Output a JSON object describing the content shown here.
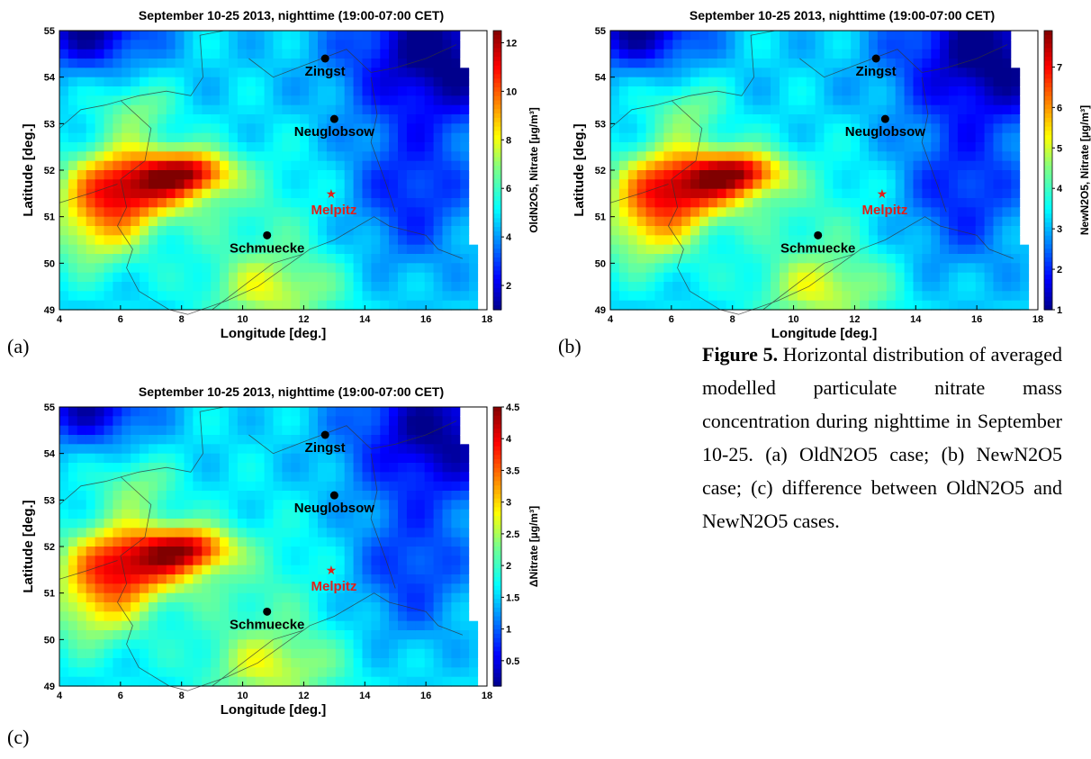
{
  "figure": {
    "label": "Figure 5.",
    "caption": "Horizontal distribution of averaged modelled particulate nitrate mass concentration during nighttime in September 10-25. (a) OldN2O5 case; (b) NewN2O5 case; (c) difference between OldN2O5 and NewN2O5 cases."
  },
  "chart_data": [
    {
      "panel": "(a)",
      "type": "heatmap",
      "title": "September 10-25 2013, nighttime (19:00-07:00 CET)",
      "xlabel": "Longitude [deg.]",
      "ylabel": "Latitude [deg.]",
      "colorbar_label": "OldN2O5, Nitrate [µg/m³]",
      "xlim": [
        4,
        18
      ],
      "ylim": [
        49,
        55
      ],
      "x_ticks": [
        "4",
        "6",
        "8",
        "10",
        "12",
        "14",
        "16",
        "18"
      ],
      "y_ticks": [
        "49",
        "50",
        "51",
        "52",
        "53",
        "54",
        "55"
      ],
      "colorbar_range": [
        1,
        12.5
      ],
      "colorbar_ticks": [
        "2",
        "4",
        "6",
        "8",
        "10",
        "12"
      ],
      "stations": [
        {
          "name": "Zingst",
          "lon": 12.7,
          "lat": 54.4,
          "marker": "dot"
        },
        {
          "name": "Neuglobsow",
          "lon": 13.0,
          "lat": 53.1,
          "marker": "dot"
        },
        {
          "name": "Melpitz",
          "lon": 12.9,
          "lat": 51.5,
          "marker": "star"
        },
        {
          "name": "Schmuecke",
          "lon": 10.8,
          "lat": 50.6,
          "marker": "dot"
        }
      ]
    },
    {
      "panel": "(b)",
      "type": "heatmap",
      "title": "September 10-25 2013, nighttime (19:00-07:00 CET)",
      "xlabel": "Longitude [deg.]",
      "ylabel": "Latitude [deg.]",
      "colorbar_label": "NewN2O5, Nitrate [µg/m³]",
      "xlim": [
        4,
        18
      ],
      "ylim": [
        49,
        55
      ],
      "x_ticks": [
        "4",
        "6",
        "8",
        "10",
        "12",
        "14",
        "16",
        "18"
      ],
      "y_ticks": [
        "49",
        "50",
        "51",
        "52",
        "53",
        "54",
        "55"
      ],
      "colorbar_range": [
        1,
        7.9
      ],
      "colorbar_ticks": [
        "1",
        "2",
        "3",
        "4",
        "5",
        "6",
        "7"
      ],
      "stations": [
        {
          "name": "Zingst",
          "lon": 12.7,
          "lat": 54.4,
          "marker": "dot"
        },
        {
          "name": "Neuglobsow",
          "lon": 13.0,
          "lat": 53.1,
          "marker": "dot"
        },
        {
          "name": "Melpitz",
          "lon": 12.9,
          "lat": 51.5,
          "marker": "star"
        },
        {
          "name": "Schmuecke",
          "lon": 10.8,
          "lat": 50.6,
          "marker": "dot"
        }
      ]
    },
    {
      "panel": "(c)",
      "type": "heatmap",
      "title": "September 10-25 2013, nighttime (19:00-07:00 CET)",
      "xlabel": "Longitude [deg.]",
      "ylabel": "Latitude [deg.]",
      "colorbar_label": "ΔNitrate [µg/m³]",
      "xlim": [
        4,
        18
      ],
      "ylim": [
        49,
        55
      ],
      "x_ticks": [
        "4",
        "6",
        "8",
        "10",
        "12",
        "14",
        "16",
        "18"
      ],
      "y_ticks": [
        "49",
        "50",
        "51",
        "52",
        "53",
        "54",
        "55"
      ],
      "colorbar_range": [
        0.1,
        4.5
      ],
      "colorbar_ticks": [
        "0.5",
        "1",
        "1.5",
        "2",
        "2.5",
        "3",
        "3.5",
        "4",
        "4.5"
      ],
      "stations": [
        {
          "name": "Zingst",
          "lon": 12.7,
          "lat": 54.4,
          "marker": "dot"
        },
        {
          "name": "Neuglobsow",
          "lon": 13.0,
          "lat": 53.1,
          "marker": "dot"
        },
        {
          "name": "Melpitz",
          "lon": 12.9,
          "lat": 51.5,
          "marker": "star"
        },
        {
          "name": "Schmuecke",
          "lon": 10.8,
          "lat": 50.6,
          "marker": "dot"
        }
      ]
    }
  ]
}
